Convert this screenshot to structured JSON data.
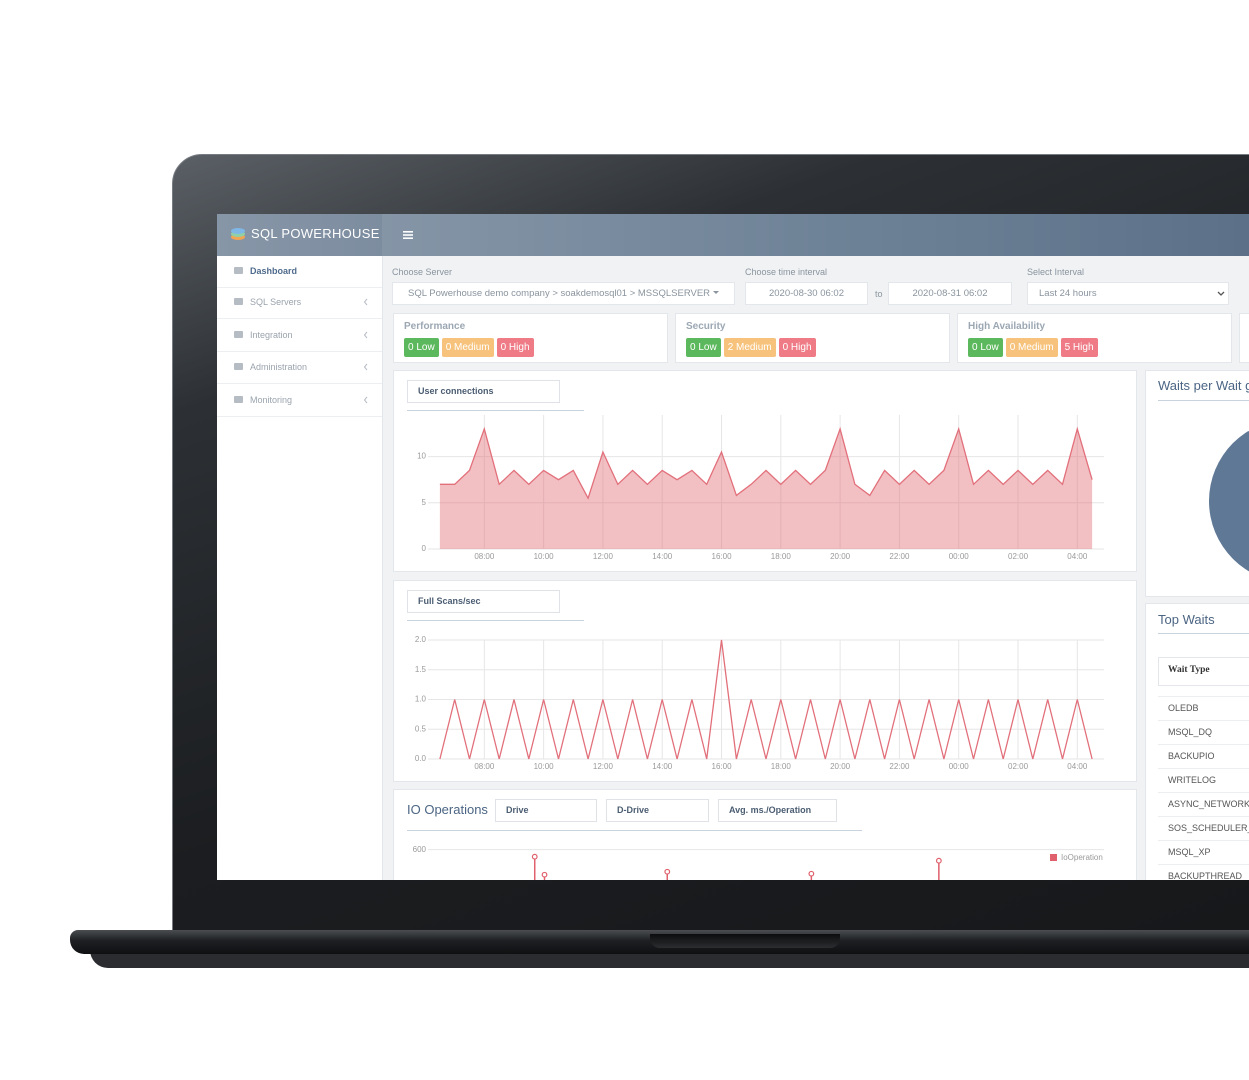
{
  "header": {
    "brand": "SQL POWERHOUSE"
  },
  "sidebar": {
    "items": [
      "Dashboard",
      "SQL Servers",
      "Integration",
      "Administration",
      "Monitoring"
    ]
  },
  "filters": {
    "server_label": "Choose Server",
    "server": "SQL Powerhouse demo company > soakdemosql01 > MSSQLSERVER",
    "time_label": "Choose time interval",
    "from": "2020-08-30 06:02",
    "to_label": "to",
    "to": "2020-08-31 06:02",
    "interval_label": "Select Interval",
    "interval": "Last 24 hours"
  },
  "status_cards": [
    {
      "title": "Performance",
      "badges": [
        "0 Low",
        "0 Medium",
        "0 High"
      ]
    },
    {
      "title": "Security",
      "badges": [
        "0 Low",
        "2 Medium",
        "0 High"
      ]
    },
    {
      "title": "High Availability",
      "badges": [
        "0 Low",
        "0 Medium",
        "5 High"
      ]
    }
  ],
  "chart_data": [
    {
      "type": "area",
      "title": "User connections",
      "color": "#e2707b",
      "grid": true,
      "x": [
        6.5,
        7,
        7.5,
        8,
        8.5,
        9,
        9.5,
        10,
        10.5,
        11,
        11.5,
        12,
        12.5,
        13,
        13.5,
        14,
        14.5,
        15,
        15.5,
        16,
        16.5,
        17,
        17.5,
        18,
        18.5,
        19,
        19.5,
        20,
        20.5,
        21,
        21.5,
        22,
        22.5,
        23,
        23.5,
        24,
        24.5,
        25,
        25.5,
        26,
        26.5,
        27,
        27.5,
        28,
        28.5
      ],
      "values": [
        7,
        7,
        8.5,
        13,
        7,
        8.5,
        7,
        8.5,
        7.5,
        8.5,
        5.5,
        10.5,
        7,
        8.5,
        7,
        8.5,
        7.5,
        8.5,
        7,
        10.5,
        5.8,
        7,
        8.5,
        7,
        8.5,
        7,
        8.5,
        13,
        7,
        5.8,
        8.5,
        7,
        8.5,
        7,
        8.5,
        13,
        7,
        8.5,
        7,
        8.5,
        7,
        8.5,
        7,
        13,
        7.5
      ],
      "xlim": [
        6.1,
        28.9
      ],
      "xticks": [
        {
          "value": 8,
          "label": "08:00"
        },
        {
          "value": 10,
          "label": "10:00"
        },
        {
          "value": 12,
          "label": "12:00"
        },
        {
          "value": 14,
          "label": "14:00"
        },
        {
          "value": 16,
          "label": "16:00"
        },
        {
          "value": 18,
          "label": "18:00"
        },
        {
          "value": 20,
          "label": "20:00"
        },
        {
          "value": 22,
          "label": "22:00"
        },
        {
          "value": 24,
          "label": "00:00"
        },
        {
          "value": 26,
          "label": "02:00"
        },
        {
          "value": 28,
          "label": "04:00"
        }
      ],
      "ylim": [
        0,
        14.5
      ],
      "yticks": [
        0,
        5,
        10
      ]
    },
    {
      "type": "line",
      "title": "Full Scans/sec",
      "color": "#e2707b",
      "grid": true,
      "x": [
        6.5,
        7,
        7.5,
        8,
        8.5,
        9,
        9.5,
        10,
        10.5,
        11,
        11.5,
        12,
        12.5,
        13,
        13.5,
        14,
        14.5,
        15,
        15.5,
        16,
        16.5,
        17,
        17.5,
        18,
        18.5,
        19,
        19.5,
        20,
        20.5,
        21,
        21.5,
        22,
        22.5,
        23,
        23.5,
        24,
        24.5,
        25,
        25.5,
        26,
        26.5,
        27,
        27.5,
        28,
        28.5
      ],
      "values": [
        0,
        1,
        0,
        1,
        0,
        1,
        0,
        1,
        0,
        1,
        0,
        1,
        0,
        1,
        0,
        1,
        0,
        1,
        0,
        2,
        0,
        1,
        0,
        1,
        0,
        1,
        0,
        1,
        0,
        1,
        0,
        1,
        0,
        1,
        0,
        1,
        0,
        1,
        0,
        1,
        0,
        1,
        0,
        1,
        0
      ],
      "xlim": [
        6.1,
        28.9
      ],
      "xticks": [
        {
          "value": 8,
          "label": "08:00"
        },
        {
          "value": 10,
          "label": "10:00"
        },
        {
          "value": 12,
          "label": "12:00"
        },
        {
          "value": 14,
          "label": "14:00"
        },
        {
          "value": 16,
          "label": "16:00"
        },
        {
          "value": 18,
          "label": "18:00"
        },
        {
          "value": 20,
          "label": "20:00"
        },
        {
          "value": 22,
          "label": "22:00"
        },
        {
          "value": 24,
          "label": "00:00"
        },
        {
          "value": 26,
          "label": "02:00"
        },
        {
          "value": 28,
          "label": "04:00"
        }
      ],
      "ylim": [
        0,
        2.0
      ],
      "yticks": [
        {
          "value": 0,
          "label": "0.0"
        },
        0.5,
        {
          "value": 1,
          "label": "1.0"
        },
        1.5,
        {
          "value": 2,
          "label": "2.0"
        }
      ]
    },
    {
      "type": "stem",
      "title": "IO Operations",
      "filters": [
        "Drive",
        "D-Drive",
        "Avg. ms./Operation"
      ],
      "grid": true,
      "legend": "top-right",
      "series": [
        {
          "name": "IoOperation",
          "color": "#e0606c",
          "x": [
            9.7,
            10.03,
            14.17,
            19.03,
            23.33
          ],
          "values": [
            579,
            525,
            534,
            528,
            567
          ]
        }
      ],
      "xlim": [
        6.1,
        28.9
      ],
      "ylim": [
        0,
        620
      ],
      "yticks": [
        600
      ]
    }
  ],
  "waits_panel": {
    "title": "Waits per Wait g"
  },
  "top_waits": {
    "title": "Top Waits",
    "column": "Wait Type",
    "rows": [
      "OLEDB",
      "MSQL_DQ",
      "BACKUPIO",
      "WRITELOG",
      "ASYNC_NETWORK_I",
      "SOS_SCHEDULER_Y",
      "MSQL_XP",
      "BACKUPTHREAD"
    ]
  }
}
